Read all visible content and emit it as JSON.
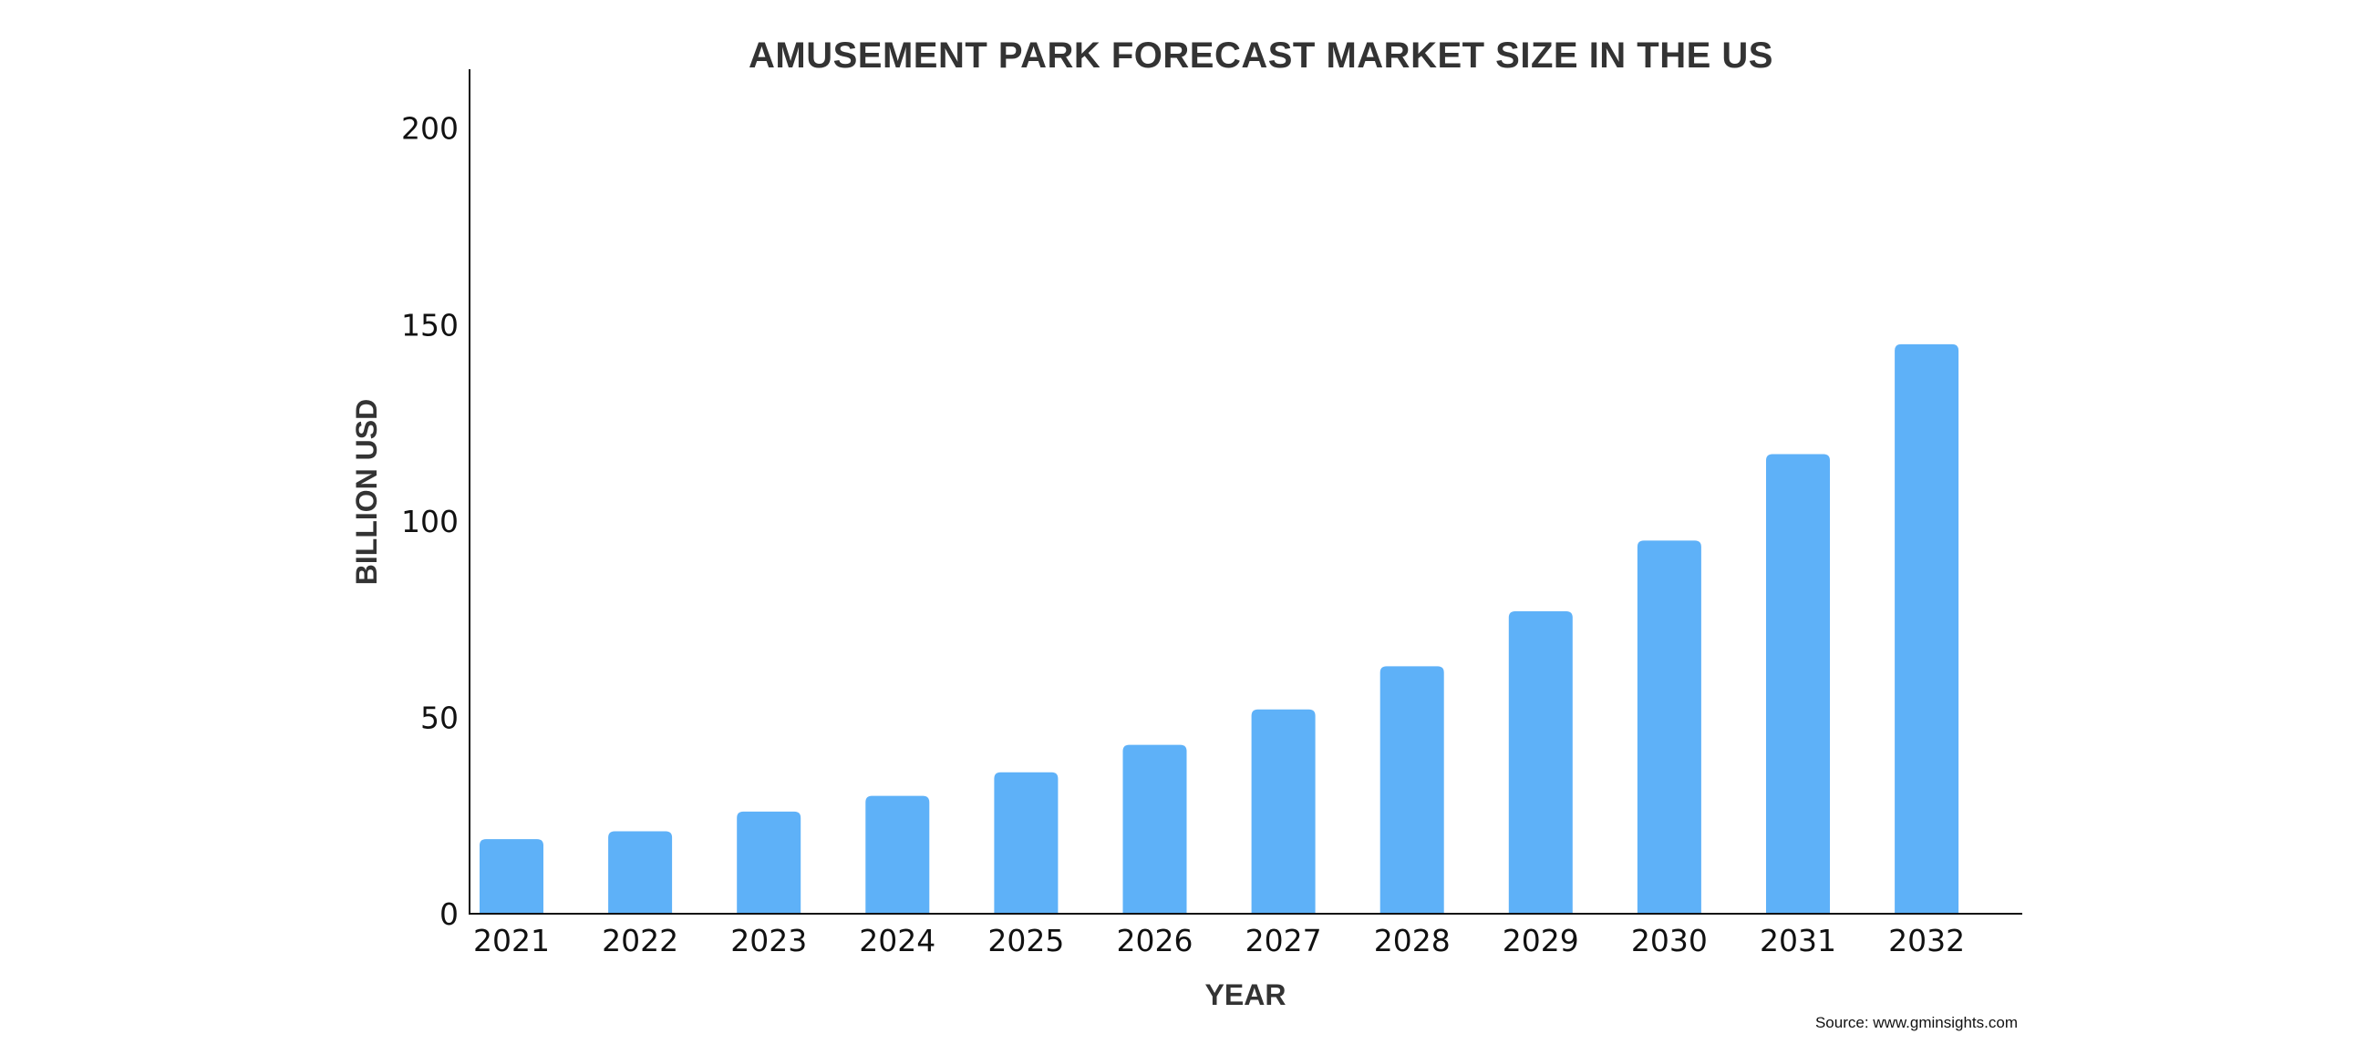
{
  "chart_data": {
    "type": "bar",
    "title": "AMUSEMENT PARK FORECAST MARKET SIZE IN THE US",
    "xlabel": "YEAR",
    "ylabel": "BILLION USD",
    "categories": [
      "2021",
      "2022",
      "2023",
      "2024",
      "2025",
      "2026",
      "2027",
      "2028",
      "2029",
      "2030",
      "2031",
      "2032"
    ],
    "values": [
      19,
      21,
      26,
      30,
      36,
      43,
      52,
      63,
      77,
      95,
      117,
      145
    ],
    "ylim": [
      0,
      215
    ],
    "yticks": [
      0,
      50,
      100,
      150,
      200
    ],
    "grid": false,
    "legend": "none",
    "bar_color": "#5eb1f8",
    "source": "Source: www.gminsights.com"
  }
}
